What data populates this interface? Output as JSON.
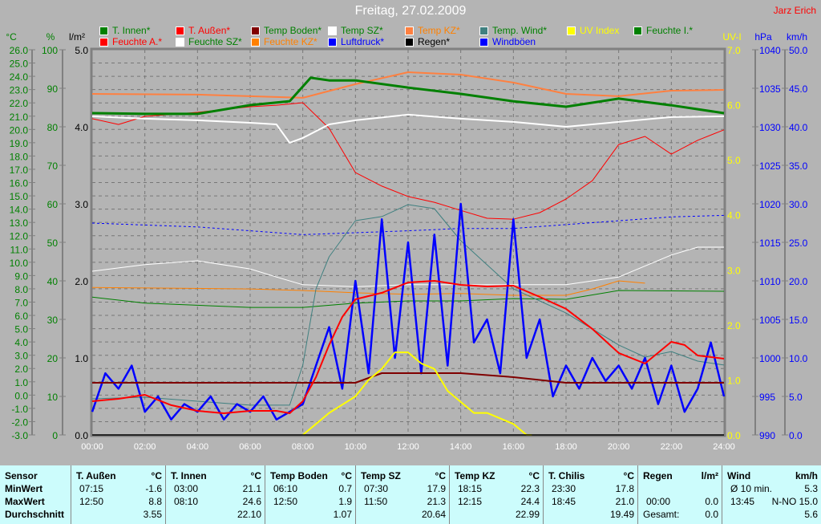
{
  "title": "Freitag, 27.02.2009",
  "author": "Jarz Erich",
  "legend": [
    {
      "name": "T. Innen*",
      "color": "#008000"
    },
    {
      "name": "T. Außen*",
      "color": "#ff0000"
    },
    {
      "name": "Temp Boden*",
      "color": "#800000"
    },
    {
      "name": "Temp SZ*",
      "color": "#ffffff"
    },
    {
      "name": "Temp KZ*",
      "color": "#ff8040"
    },
    {
      "name": "Temp. Wind*",
      "color": "#408080"
    },
    {
      "name": "UV Index",
      "color": "#ffff00"
    },
    {
      "name": "Feuchte I.*",
      "color": "#008000"
    },
    {
      "name": "Feuchte A.*",
      "color": "#ff0000"
    },
    {
      "name": "Feuchte SZ*",
      "color": "#ffffff"
    },
    {
      "name": "Feuchte KZ*",
      "color": "#ff8000"
    },
    {
      "name": "Luftdruck*",
      "color": "#0000ff"
    },
    {
      "name": "Regen*",
      "color": "#000000"
    },
    {
      "name": "Windböen",
      "color": "#0000ff"
    }
  ],
  "chart_data": {
    "type": "line",
    "title": "Freitag, 27.02.2009",
    "grid": true,
    "legend_position": "top",
    "x": {
      "label": "",
      "range": [
        "00:00",
        "24:00"
      ],
      "ticks": [
        "00:00",
        "02:00",
        "04:00",
        "06:00",
        "08:00",
        "10:00",
        "12:00",
        "14:00",
        "16:00",
        "18:00",
        "20:00",
        "22:00",
        "24:00"
      ]
    },
    "axes": {
      "celsius": {
        "label": "°C",
        "range": [
          -3,
          26
        ],
        "color": "#008000",
        "ticks": [
          "26.0",
          "25.0",
          "24.0",
          "23.0",
          "22.0",
          "21.0",
          "20.0",
          "19.0",
          "18.0",
          "17.0",
          "16.0",
          "15.0",
          "14.0",
          "13.0",
          "12.0",
          "11.0",
          "10.0",
          "9.0",
          "8.0",
          "7.0",
          "6.0",
          "5.0",
          "4.0",
          "3.0",
          "2.0",
          "1.0",
          "0.0",
          "-1.0",
          "-2.0",
          "-3.0"
        ]
      },
      "percent": {
        "label": "%",
        "range": [
          0,
          100
        ],
        "color": "#008000",
        "ticks": [
          "100",
          "90",
          "80",
          "70",
          "60",
          "50",
          "40",
          "30",
          "20",
          "10",
          "0"
        ]
      },
      "rain": {
        "label": "l/m²",
        "range": [
          0,
          5
        ],
        "color": "#000000",
        "ticks": [
          "5.0",
          "4.0",
          "3.0",
          "2.0",
          "1.0",
          "0.0"
        ]
      },
      "uv": {
        "label": "UV-I",
        "range": [
          0,
          7
        ],
        "color": "#ffff00",
        "ticks": [
          "7.0",
          "6.0",
          "5.0",
          "4.0",
          "3.0",
          "2.0",
          "1.0",
          "0.0"
        ]
      },
      "hpa": {
        "label": "hPa",
        "range": [
          990,
          1040
        ],
        "color": "#0000ff",
        "ticks": [
          "1040",
          "1035",
          "1030",
          "1025",
          "1020",
          "1015",
          "1010",
          "1005",
          "1000",
          "995",
          "990"
        ]
      },
      "kmh": {
        "label": "km/h",
        "range": [
          0,
          50
        ],
        "color": "#0000ff",
        "ticks": [
          "50.0",
          "45.0",
          "40.0",
          "35.0",
          "30.0",
          "25.0",
          "20.0",
          "15.0",
          "10.0",
          "5.0",
          "0.0"
        ]
      }
    },
    "series": [
      {
        "name": "Feuchte I.*",
        "axis": "percent",
        "color": "#008000",
        "width": 1,
        "x": [
          0,
          2,
          6,
          8,
          10,
          12,
          14,
          16,
          18,
          20,
          24
        ],
        "y": [
          35.8,
          34.2,
          33.1,
          33.1,
          34.2,
          34.8,
          34.8,
          35.4,
          35.2,
          37.5,
          37.3
        ]
      },
      {
        "name": "Feuchte SZ*",
        "axis": "percent",
        "color": "#ffffff",
        "width": 1,
        "x": [
          0,
          2,
          4,
          6,
          7,
          8,
          10,
          12,
          14,
          16,
          18,
          20,
          22,
          23,
          24
        ],
        "y": [
          42.5,
          44.2,
          45.2,
          43.1,
          41.0,
          39.0,
          38.5,
          39.0,
          39.0,
          39.0,
          39.0,
          41.0,
          46.7,
          48.75,
          48.75
        ]
      },
      {
        "name": "Feuchte KZ*",
        "axis": "percent",
        "color": "#ff8000",
        "width": 1,
        "x": [
          0,
          6,
          8,
          10,
          12,
          14,
          16,
          18,
          19,
          20,
          21
        ],
        "y": [
          38.3,
          37.9,
          37.5,
          36.9,
          36.5,
          36.7,
          36.25,
          36.25,
          37.9,
          40.0,
          39.4
        ]
      },
      {
        "name": "Feuchte A.*",
        "axis": "percent",
        "color": "#ff0000",
        "width": 1,
        "x": [
          0,
          1,
          2,
          4,
          6,
          7,
          8,
          9,
          10,
          11,
          12,
          13,
          14,
          15,
          16,
          17,
          18,
          19,
          20,
          21,
          22,
          23,
          24
        ],
        "y": [
          82.1,
          80.6,
          82.7,
          83.75,
          85.2,
          85.6,
          86.25,
          79.6,
          68.1,
          64.6,
          61.9,
          60.4,
          58.3,
          56.25,
          56.0,
          57.7,
          61.25,
          66.0,
          75.4,
          77.5,
          72.9,
          76.5,
          79.2
        ]
      },
      {
        "name": "Luftdruck*",
        "axis": "hpa",
        "color": "#0000ff",
        "width": 1,
        "dash": true,
        "x": [
          0,
          4,
          6,
          8,
          10,
          12,
          14,
          16,
          18,
          20,
          22,
          24
        ],
        "y": [
          1017.5,
          1017.0,
          1016.5,
          1016.0,
          1016.25,
          1016.5,
          1016.8,
          1016.8,
          1017.3,
          1017.8,
          1018.3,
          1018.5
        ]
      },
      {
        "name": "Temp. Wind*",
        "axis": "celsius",
        "color": "#408080",
        "width": 1,
        "x": [
          0,
          2,
          4,
          6,
          7.5,
          8,
          8.5,
          9,
          10,
          11,
          12,
          13,
          14,
          15,
          16,
          17,
          18,
          19,
          20,
          21,
          22,
          23,
          24
        ],
        "y": [
          -0.28,
          -0.16,
          -0.46,
          -0.76,
          -0.76,
          2.26,
          8.0,
          10.41,
          13.13,
          13.44,
          14.34,
          14.04,
          11.62,
          9.81,
          8.0,
          7.09,
          6.18,
          4.98,
          3.77,
          2.86,
          3.28,
          2.56,
          2.26
        ]
      },
      {
        "name": "Windböen",
        "axis": "kmh",
        "color": "#0000ff",
        "width": 2.5,
        "x": [
          0,
          0.5,
          1,
          1.5,
          2,
          2.5,
          3,
          3.5,
          4,
          4.5,
          5,
          5.5,
          6,
          6.5,
          7,
          7.5,
          8,
          8.5,
          9,
          9.5,
          10,
          10.5,
          11,
          11.5,
          12,
          12.5,
          13,
          13.5,
          14,
          14.5,
          15,
          15.5,
          16,
          16.5,
          17,
          17.5,
          18,
          18.5,
          19,
          19.5,
          20,
          20.5,
          21,
          21.5,
          22,
          22.5,
          23,
          23.5,
          24
        ],
        "y": [
          3,
          8,
          6,
          9,
          3,
          5,
          2,
          4,
          3,
          5,
          2,
          4,
          3,
          5,
          2,
          3,
          4,
          9,
          14,
          6,
          20,
          8,
          28,
          10,
          25,
          8,
          26,
          9,
          30,
          12,
          15,
          8,
          28,
          10,
          15,
          5,
          9,
          6,
          10,
          7,
          9,
          6,
          10,
          4,
          9,
          3,
          6,
          12,
          5
        ]
      },
      {
        "name": "Temp Boden*",
        "axis": "celsius",
        "color": "#800000",
        "width": 2,
        "x": [
          0,
          10,
          11,
          12,
          14,
          16,
          18,
          24
        ],
        "y": [
          0.93,
          0.93,
          1.65,
          1.65,
          1.65,
          1.35,
          0.93,
          0.93
        ]
      },
      {
        "name": "UV Index",
        "axis": "uv",
        "color": "#ffff00",
        "width": 2,
        "x": [
          8,
          8.5,
          9,
          9.5,
          10,
          10.5,
          11,
          11.5,
          12,
          12.5,
          13,
          13.5,
          14,
          14.5,
          15,
          15.5,
          16,
          16.5,
          16.7
        ],
        "y": [
          0,
          0.2,
          0.4,
          0.55,
          0.7,
          1.0,
          1.2,
          1.5,
          1.5,
          1.3,
          1.2,
          0.8,
          0.6,
          0.4,
          0.4,
          0.3,
          0.2,
          0.0,
          0.0
        ]
      },
      {
        "name": "Regen*",
        "axis": "rain",
        "color": "#000000",
        "width": 1.5,
        "x": [
          0,
          24
        ],
        "y": [
          0,
          0
        ]
      },
      {
        "name": "T. Außen*",
        "axis": "celsius",
        "color": "#ff0000",
        "width": 2,
        "x": [
          0,
          1,
          2,
          3,
          4,
          5,
          6,
          7,
          7.5,
          8,
          8.5,
          9,
          9.5,
          10,
          11,
          12,
          13,
          14,
          15,
          16,
          17,
          18,
          19,
          20,
          21,
          22,
          22.5,
          23,
          24
        ],
        "y": [
          -0.46,
          -0.28,
          0.02,
          -0.76,
          -1.19,
          -1.37,
          -1.19,
          -1.19,
          -1.37,
          -0.46,
          1.35,
          3.77,
          5.88,
          7.21,
          7.7,
          8.48,
          8.6,
          8.3,
          8.18,
          8.24,
          7.39,
          6.49,
          4.98,
          3.17,
          2.38,
          4.01,
          3.77,
          2.98,
          2.74
        ]
      },
      {
        "name": "Temp SZ*",
        "axis": "celsius",
        "color": "#ffffff",
        "width": 2,
        "x": [
          0,
          2,
          4,
          6,
          7,
          7.5,
          8,
          9,
          10,
          12,
          14,
          16,
          18,
          20,
          22,
          24
        ],
        "y": [
          20.99,
          20.81,
          20.69,
          20.5,
          20.38,
          19.0,
          19.36,
          20.38,
          20.69,
          21.11,
          20.81,
          20.57,
          20.2,
          20.57,
          20.93,
          20.99
        ]
      },
      {
        "name": "Temp KZ*",
        "axis": "celsius",
        "color": "#ff8040",
        "width": 2,
        "x": [
          0,
          4,
          6,
          8,
          10,
          12,
          14,
          16,
          18,
          20,
          22,
          24
        ],
        "y": [
          22.68,
          22.62,
          22.5,
          22.38,
          23.41,
          24.31,
          24.13,
          23.53,
          22.68,
          22.5,
          22.92,
          22.98
        ]
      },
      {
        "name": "T. Innen*",
        "axis": "celsius",
        "color": "#008000",
        "width": 3,
        "x": [
          0,
          2,
          4,
          6,
          7.5,
          8.3,
          9,
          10,
          12,
          14,
          16,
          18,
          20,
          22,
          24
        ],
        "y": [
          21.23,
          21.17,
          21.17,
          21.83,
          22.13,
          23.89,
          23.69,
          23.69,
          23.15,
          22.68,
          22.12,
          21.71,
          22.32,
          21.82,
          21.23
        ]
      }
    ]
  },
  "table": {
    "columns": [
      {
        "header": "Sensor",
        "unit": "",
        "rows": [
          [
            "MinWert",
            ""
          ],
          [
            "MaxWert",
            ""
          ],
          [
            "Durchschnitt",
            ""
          ]
        ]
      },
      {
        "header": "T. Außen",
        "unit": "°C",
        "rows": [
          [
            "07:15",
            "-1.6"
          ],
          [
            "12:50",
            "8.8"
          ],
          [
            "",
            "3.55"
          ]
        ]
      },
      {
        "header": "T. Innen",
        "unit": "°C",
        "rows": [
          [
            "03:00",
            "21.1"
          ],
          [
            "08:10",
            "24.6"
          ],
          [
            "",
            "22.10"
          ]
        ]
      },
      {
        "header": "Temp Boden",
        "unit": "°C",
        "rows": [
          [
            "06:10",
            "0.7"
          ],
          [
            "12:50",
            "1.9"
          ],
          [
            "",
            "1.07"
          ]
        ]
      },
      {
        "header": "Temp SZ",
        "unit": "°C",
        "rows": [
          [
            "07:30",
            "17.9"
          ],
          [
            "11:50",
            "21.3"
          ],
          [
            "",
            "20.64"
          ]
        ]
      },
      {
        "header": "Temp KZ",
        "unit": "°C",
        "rows": [
          [
            "18:15",
            "22.3"
          ],
          [
            "12:15",
            "24.4"
          ],
          [
            "",
            "22.99"
          ]
        ]
      },
      {
        "header": "T. Chilis",
        "unit": "°C",
        "rows": [
          [
            "23:30",
            "17.8"
          ],
          [
            "18:45",
            "21.0"
          ],
          [
            "",
            "19.49"
          ]
        ]
      },
      {
        "header": "Regen",
        "unit": "l/m²",
        "rows": [
          [
            "",
            ""
          ],
          [
            "00:00",
            "0.0"
          ],
          [
            "Gesamt:",
            "0.0"
          ]
        ]
      },
      {
        "header": "Wind",
        "unit": "km/h",
        "rows": [
          [
            "Ø 10 min.",
            "5.3"
          ],
          [
            "13:45",
            "N-NO 15.0"
          ],
          [
            "",
            "5.6"
          ]
        ]
      }
    ]
  }
}
